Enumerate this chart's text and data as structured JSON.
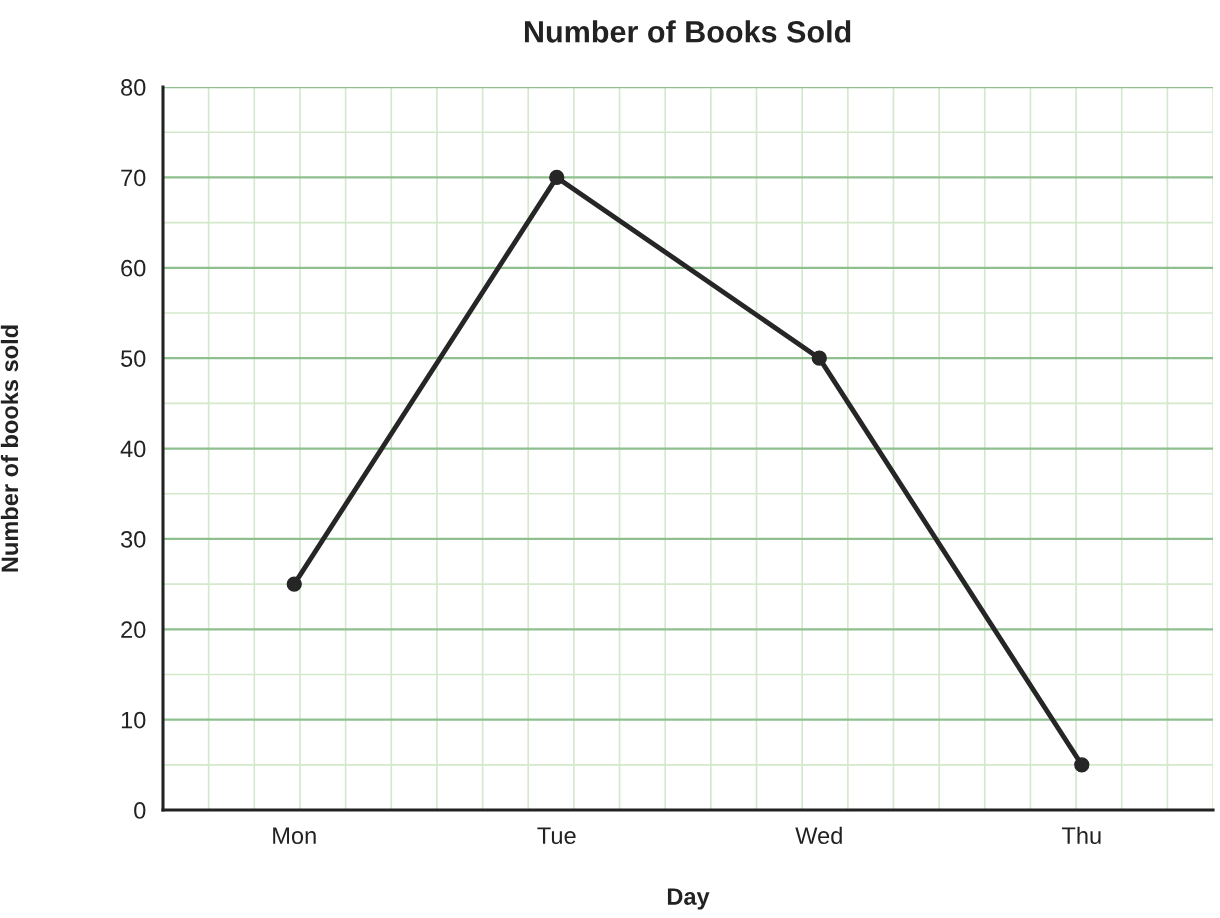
{
  "chart_data": {
    "type": "line",
    "title": "Number of Books Sold",
    "xlabel": "Day",
    "ylabel": "Number of books sold",
    "categories": [
      "Mon",
      "Tue",
      "Wed",
      "Thu"
    ],
    "series": [
      {
        "color": "#262626",
        "values": [
          25,
          70,
          50,
          5
        ]
      }
    ],
    "ylim": [
      0,
      80
    ],
    "yticks": [
      0,
      10,
      20,
      30,
      40,
      50,
      60,
      70,
      80
    ],
    "grid": true,
    "marker": "circle",
    "line_style": "solid"
  }
}
